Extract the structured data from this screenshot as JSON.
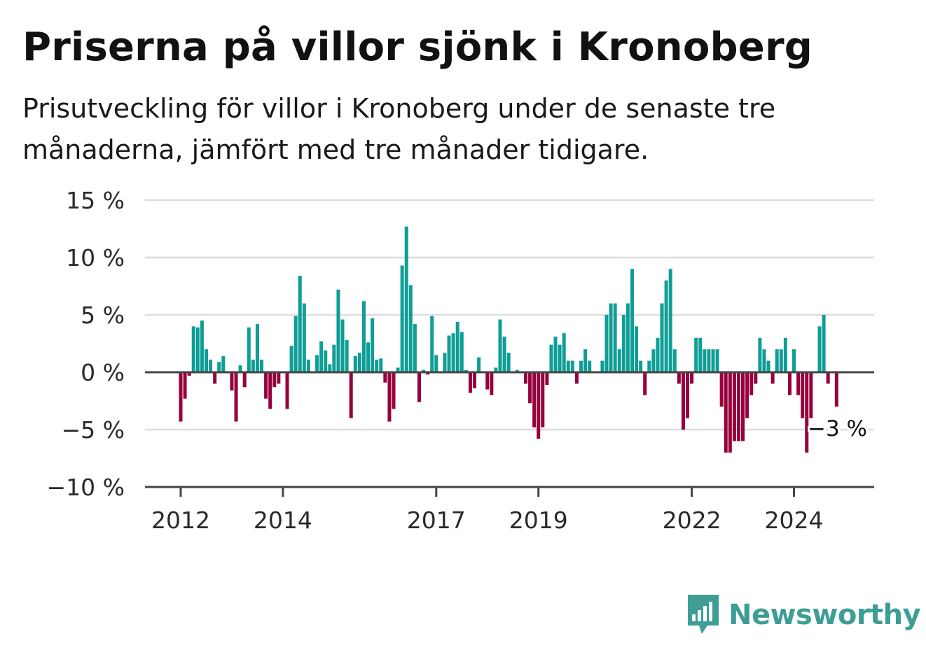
{
  "title": "Priserna på villor sjönk i Kronoberg",
  "subtitle": "Prisutveckling för villor i Kronoberg under de senaste tre månaderna, jämfört med tre månader tidigare.",
  "brand": {
    "name": "Newsworthy",
    "icon": "bar-chart-speech-bubble-icon",
    "color": "#3e9e96"
  },
  "colors": {
    "positive": "#0e9e96",
    "negative": "#96003c",
    "grid": "#dddddd",
    "axis": "#444444"
  },
  "chart_data": {
    "type": "bar",
    "start": "2012-01",
    "frequency": "monthly",
    "ylim": [
      -10,
      15
    ],
    "yticks": [
      -10,
      -5,
      0,
      5,
      10,
      15
    ],
    "ytick_labels": [
      "−10 %",
      "−5 %",
      "0 %",
      "5 %",
      "10 %",
      "15 %"
    ],
    "xtick_labels": [
      {
        "label": "2012",
        "date": "2012-01"
      },
      {
        "label": "2014",
        "date": "2014-01"
      },
      {
        "label": "2017",
        "date": "2017-01"
      },
      {
        "label": "2019",
        "date": "2019-01"
      },
      {
        "label": "2022",
        "date": "2022-01"
      },
      {
        "label": "2024",
        "date": "2024-01"
      }
    ],
    "annotation": {
      "text": "−3 %"
    },
    "values": [
      -4.3,
      -2.3,
      -0.3,
      4.0,
      3.9,
      4.5,
      2.0,
      1.1,
      -1.0,
      0.9,
      1.4,
      0.0,
      -1.6,
      -4.3,
      0.6,
      -1.3,
      3.9,
      1.1,
      4.2,
      1.1,
      -2.3,
      -3.2,
      -1.3,
      -1.0,
      0.0,
      -3.2,
      2.3,
      4.9,
      8.4,
      6.0,
      1.1,
      0.0,
      1.5,
      2.7,
      1.9,
      0.7,
      2.4,
      7.2,
      4.6,
      2.8,
      -4.0,
      1.4,
      1.7,
      6.2,
      2.6,
      4.7,
      1.1,
      1.2,
      -0.9,
      -4.3,
      -3.2,
      0.4,
      9.3,
      12.7,
      7.6,
      4.2,
      -2.6,
      0.2,
      -0.2,
      4.9,
      1.5,
      0.0,
      1.7,
      3.2,
      3.4,
      4.4,
      3.5,
      0.2,
      -1.8,
      -1.4,
      1.3,
      0.0,
      -1.5,
      -2.0,
      0.4,
      4.6,
      3.1,
      1.7,
      0.0,
      0.2,
      0.0,
      -1.0,
      -2.7,
      -4.8,
      -5.8,
      -4.8,
      -1.1,
      2.4,
      3.1,
      2.4,
      3.4,
      1.0,
      1.0,
      -1.0,
      1.0,
      2.0,
      1.0,
      0.0,
      0.0,
      1.0,
      5.0,
      6.0,
      6.0,
      2.0,
      5.0,
      6.0,
      9.0,
      4.0,
      1.0,
      -2.0,
      1.0,
      2.0,
      3.0,
      6.0,
      8.0,
      9.0,
      2.0,
      -1.0,
      -5.0,
      -4.0,
      -1.0,
      3.0,
      3.0,
      2.0,
      2.0,
      2.0,
      2.0,
      -3.0,
      -7.0,
      -7.0,
      -6.0,
      -6.0,
      -6.0,
      -4.0,
      -2.0,
      -1.0,
      3.0,
      2.0,
      1.0,
      -1.0,
      2.0,
      2.0,
      3.0,
      -2.0,
      2.0,
      -2.0,
      -4.0,
      -7.0,
      -4.0,
      0.0,
      4.0,
      5.0,
      -1.0,
      0.0,
      -3.0
    ]
  }
}
